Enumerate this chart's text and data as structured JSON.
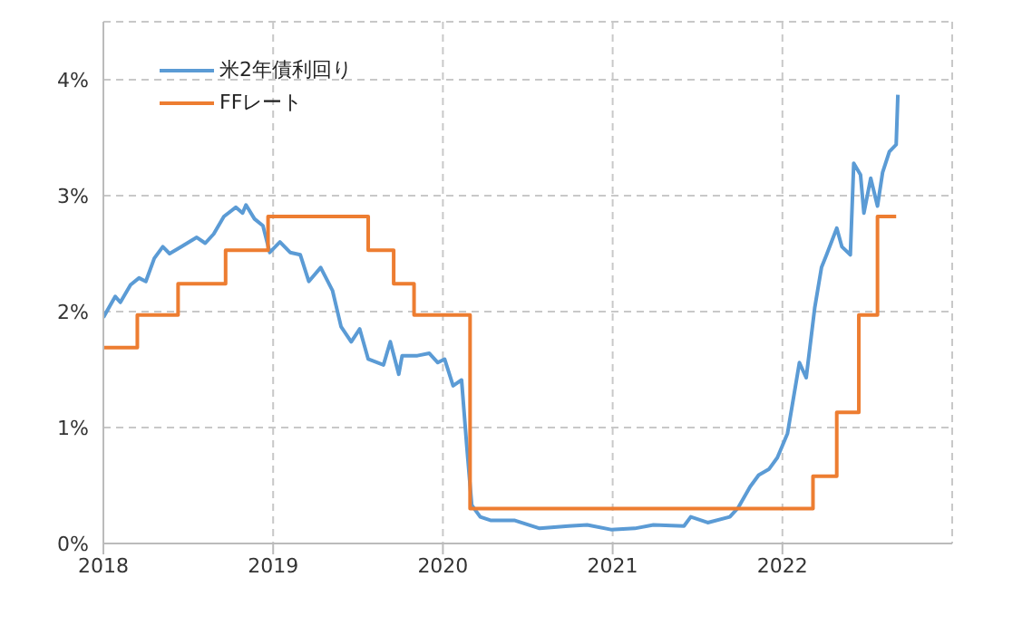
{
  "chart_data": {
    "type": "line",
    "xlim": [
      2018,
      2023
    ],
    "xticks": [
      2018,
      2019,
      2020,
      2021,
      2022
    ],
    "ylim": [
      0,
      4.5
    ],
    "yticks": [
      {
        "value": 0,
        "label": "0%"
      },
      {
        "value": 1,
        "label": "1%"
      },
      {
        "value": 2,
        "label": "2%"
      },
      {
        "value": 3,
        "label": "3%"
      },
      {
        "value": 4,
        "label": "4%"
      }
    ],
    "grid": true,
    "legend": "top left",
    "line_style": "solid",
    "marker": "none",
    "series": [
      {
        "name": "米2年債利回り",
        "type": "line",
        "color": "#5b9bd5",
        "x": [
          2018.0,
          2018.07,
          2018.1,
          2018.16,
          2018.21,
          2018.25,
          2018.3,
          2018.35,
          2018.39,
          2018.46,
          2018.55,
          2018.6,
          2018.65,
          2018.71,
          2018.78,
          2018.82,
          2018.84,
          2018.89,
          2018.94,
          2018.98,
          2019.04,
          2019.1,
          2019.16,
          2019.21,
          2019.28,
          2019.35,
          2019.4,
          2019.46,
          2019.51,
          2019.56,
          2019.65,
          2019.69,
          2019.74,
          2019.76,
          2019.85,
          2019.92,
          2019.97,
          2020.01,
          2020.06,
          2020.11,
          2020.14,
          2020.17,
          2020.22,
          2020.28,
          2020.42,
          2020.57,
          2020.74,
          2020.85,
          2020.99,
          2021.13,
          2021.24,
          2021.42,
          2021.46,
          2021.56,
          2021.69,
          2021.74,
          2021.81,
          2021.86,
          2021.92,
          2021.97,
          2022.03,
          2022.1,
          2022.14,
          2022.19,
          2022.23,
          2022.26,
          2022.32,
          2022.35,
          2022.4,
          2022.42,
          2022.46,
          2022.48,
          2022.52,
          2022.56,
          2022.59,
          2022.63,
          2022.67,
          2022.68
        ],
        "values": [
          1.95,
          2.13,
          2.08,
          2.23,
          2.29,
          2.26,
          2.46,
          2.56,
          2.5,
          2.56,
          2.64,
          2.59,
          2.67,
          2.82,
          2.9,
          2.85,
          2.92,
          2.8,
          2.74,
          2.51,
          2.6,
          2.51,
          2.49,
          2.26,
          2.38,
          2.18,
          1.87,
          1.74,
          1.85,
          1.59,
          1.54,
          1.74,
          1.46,
          1.62,
          1.62,
          1.64,
          1.56,
          1.59,
          1.36,
          1.41,
          0.85,
          0.33,
          0.23,
          0.2,
          0.2,
          0.13,
          0.15,
          0.16,
          0.12,
          0.13,
          0.16,
          0.15,
          0.23,
          0.18,
          0.23,
          0.31,
          0.49,
          0.59,
          0.64,
          0.74,
          0.95,
          1.56,
          1.43,
          2.03,
          2.38,
          2.49,
          2.72,
          2.56,
          2.49,
          3.28,
          3.18,
          2.85,
          3.15,
          2.91,
          3.2,
          3.38,
          3.44,
          3.87
        ]
      },
      {
        "name": "FFレート",
        "type": "step",
        "color": "#ed7d31",
        "x": [
          2018.0,
          2018.2,
          2018.44,
          2018.72,
          2018.97,
          2019.56,
          2019.71,
          2019.83,
          2020.16,
          2022.18,
          2022.32,
          2022.45,
          2022.56,
          2022.67
        ],
        "values": [
          1.69,
          1.97,
          2.24,
          2.53,
          2.82,
          2.53,
          2.24,
          1.97,
          0.3,
          0.58,
          1.13,
          1.97,
          2.82,
          2.82
        ]
      }
    ]
  }
}
